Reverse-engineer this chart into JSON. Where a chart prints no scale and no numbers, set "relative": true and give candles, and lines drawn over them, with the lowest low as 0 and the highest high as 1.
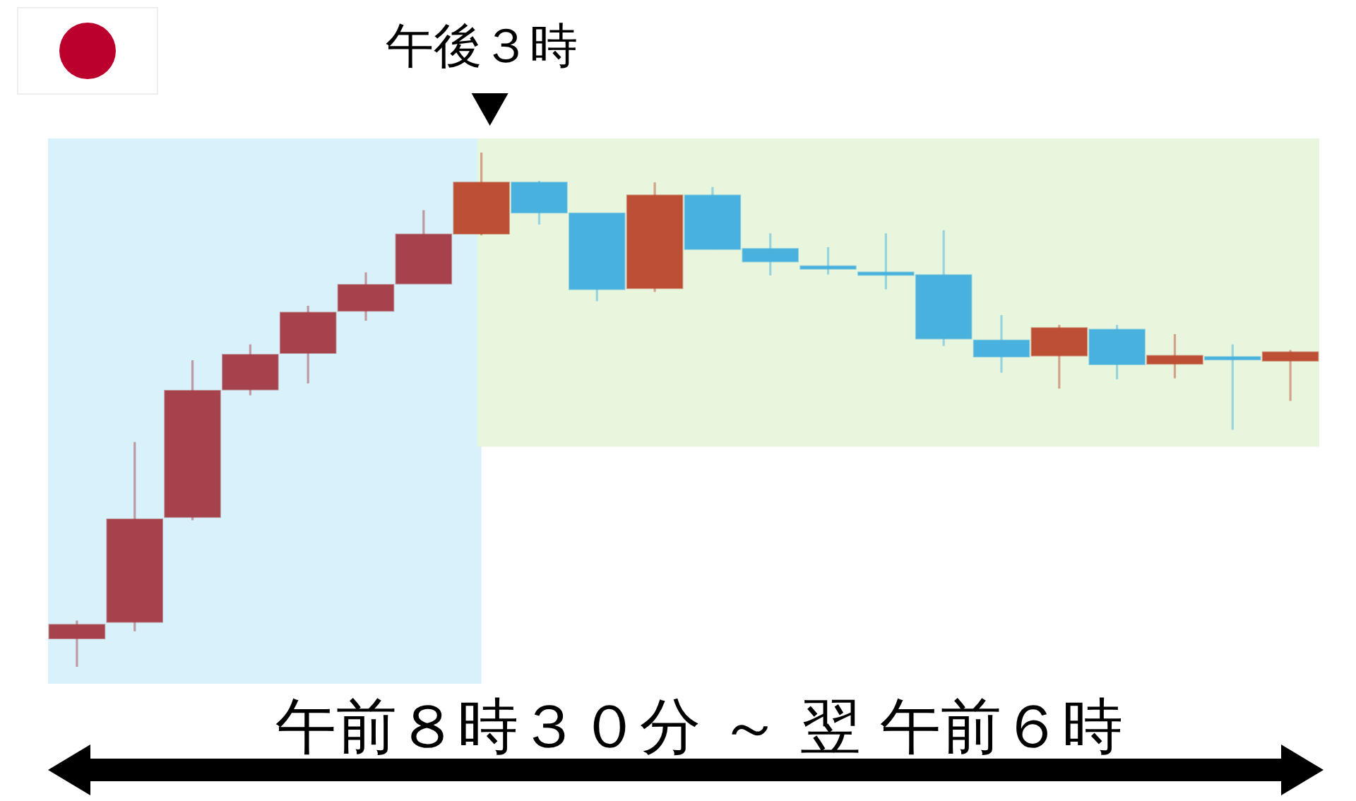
{
  "chart_data": {
    "type": "candlestick",
    "categories": [
      null,
      null,
      null,
      null,
      null,
      null,
      null,
      null,
      null,
      null,
      null,
      null,
      null,
      null,
      null,
      null,
      null,
      null,
      null,
      null,
      null,
      null
    ],
    "ohlc": [
      [
        0.055,
        0.09,
        0.0,
        0.082
      ],
      [
        0.087,
        0.437,
        0.069,
        0.287
      ],
      [
        0.291,
        0.596,
        0.285,
        0.537
      ],
      [
        0.539,
        0.627,
        0.528,
        0.607
      ],
      [
        0.61,
        0.702,
        0.551,
        0.689
      ],
      [
        0.692,
        0.767,
        0.673,
        0.743
      ],
      [
        0.745,
        0.888,
        0.745,
        0.841
      ],
      [
        0.842,
        1.0,
        0.839,
        0.942
      ],
      [
        0.942,
        0.945,
        0.86,
        0.883
      ],
      [
        0.882,
        0.882,
        0.711,
        0.734
      ],
      [
        0.736,
        0.942,
        0.729,
        0.917
      ],
      [
        0.917,
        0.933,
        0.812,
        0.812
      ],
      [
        0.813,
        0.843,
        0.761,
        0.788
      ],
      [
        0.778,
        0.816,
        0.763,
        0.775
      ],
      [
        0.766,
        0.843,
        0.734,
        0.763
      ],
      [
        0.762,
        0.849,
        0.624,
        0.638
      ],
      [
        0.635,
        0.684,
        0.572,
        0.603
      ],
      [
        0.605,
        0.665,
        0.541,
        0.659
      ],
      [
        0.656,
        0.665,
        0.559,
        0.588
      ],
      [
        0.589,
        0.647,
        0.561,
        0.605
      ],
      [
        0.602,
        0.627,
        0.461,
        0.598
      ],
      [
        0.595,
        0.616,
        0.517,
        0.612
      ]
    ],
    "colors": [
      "#a6424b",
      "#a6424b",
      "#a6424b",
      "#a6424b",
      "#a6424b",
      "#a6424b",
      "#a6424b",
      "#bc4f34",
      "#48b1dd",
      "#48b1dd",
      "#bc4f34",
      "#48b1dd",
      "#48b1dd",
      "#48b1dd",
      "#48b1dd",
      "#48b1dd",
      "#48b1dd",
      "#bc4f34",
      "#48b1dd",
      "#bc4f34",
      "#48b1dd",
      "#bc4f34"
    ],
    "relative": true,
    "annotations": [
      "午後３時",
      "午前８時３０分 ～ 翌 午前６時"
    ]
  }
}
